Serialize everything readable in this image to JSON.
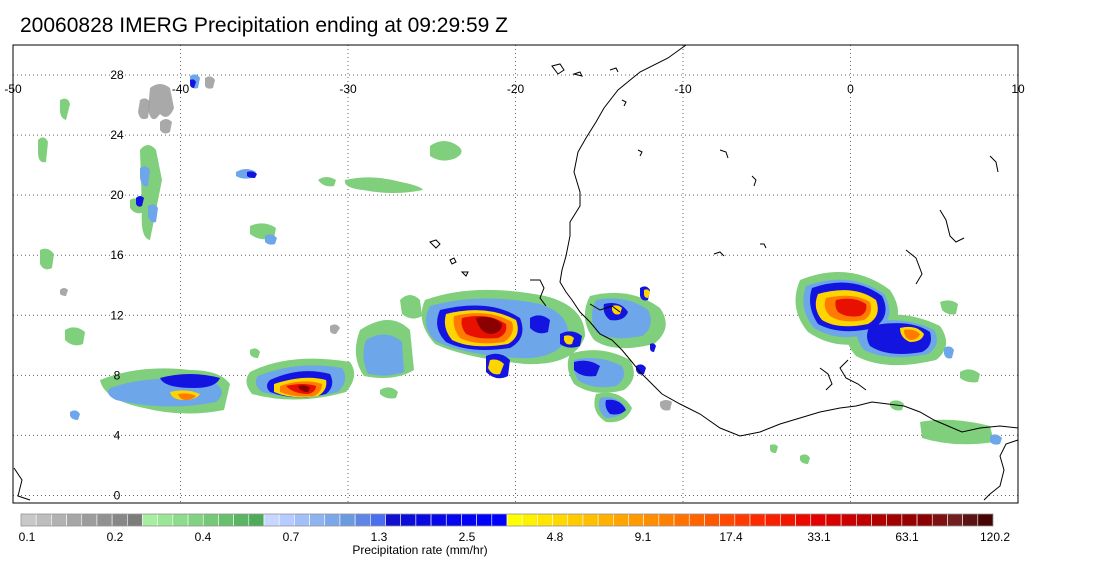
{
  "title": "20060828 IMERG Precipitation ending at 09:29:59 Z",
  "map": {
    "lon_range": [
      -50,
      10
    ],
    "lat_range": [
      -0.5,
      30
    ],
    "lon_ticks": [
      "-50",
      "-40",
      "-30",
      "-20",
      "-10",
      "0",
      "10"
    ],
    "lat_ticks": [
      "0",
      "4",
      "8",
      "12",
      "16",
      "20",
      "24",
      "28"
    ],
    "grid": "dotted",
    "coastline": "West Africa"
  },
  "colorbar": {
    "title": "Precipitation rate (mm/hr)",
    "labels": [
      "0.1",
      "0.2",
      "0.4",
      "0.7",
      "1.3",
      "2.5",
      "4.8",
      "9.1",
      "17.4",
      "33.1",
      "63.1",
      "120.2"
    ],
    "colors": [
      "#c8c8c8",
      "#bdbdbd",
      "#b2b2b2",
      "#a6a6a6",
      "#9c9c9c",
      "#919191",
      "#878787",
      "#7c7c7c",
      "#a6eea0",
      "#9ae596",
      "#8ddb8c",
      "#81d282",
      "#74c878",
      "#68bf6e",
      "#5bb564",
      "#4fab5a",
      "#c8d7ff",
      "#b6cbff",
      "#a2bff7",
      "#8fb3ef",
      "#7ca7e8",
      "#6a9be0",
      "#5f86e6",
      "#4a6fee",
      "#1010cd",
      "#0d0dd9",
      "#0a0ae0",
      "#0707e8",
      "#0505ef",
      "#0303f4",
      "#0202f9",
      "#0000ff",
      "#ffff00",
      "#fff200",
      "#ffe500",
      "#ffd800",
      "#ffcb00",
      "#ffbe00",
      "#ffb100",
      "#ffa400",
      "#ff9a00",
      "#ff8d00",
      "#ff7f00",
      "#ff7100",
      "#ff6400",
      "#ff5600",
      "#ff4800",
      "#ff3a00",
      "#ff2b00",
      "#f92000",
      "#f21500",
      "#eb0a00",
      "#e40000",
      "#d80000",
      "#cb0000",
      "#be0000",
      "#b00000",
      "#a30000",
      "#960000",
      "#8b0000",
      "#7e1010",
      "#702020",
      "#5a1212",
      "#480404"
    ]
  }
}
